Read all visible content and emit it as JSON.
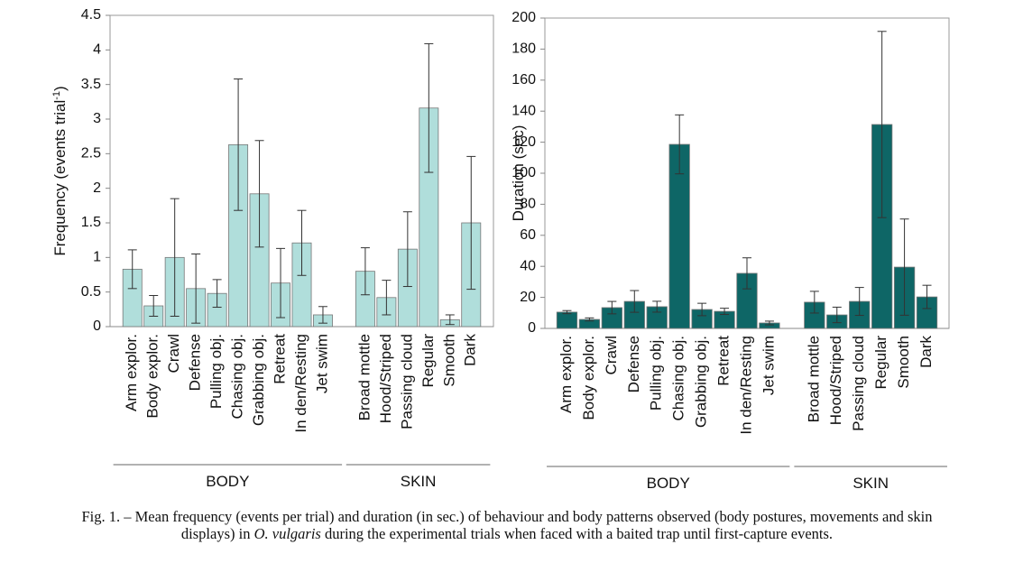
{
  "chart_data": [
    {
      "type": "bar",
      "ylabel": [
        "Frequency (events trial",
        "-1",
        ")"
      ],
      "categories": [
        "Arm explor.",
        "Body explor.",
        "Crawl",
        "Defense",
        "Pulling obj.",
        "Chasing obj.",
        "Grabbing obj.",
        "Retreat",
        "In den/Resting",
        "Jet swim",
        null,
        "Broad mottle",
        "Hood/Striped",
        "Passing cloud",
        "Regular",
        "Smooth",
        "Dark"
      ],
      "values": [
        0.83,
        0.3,
        1.0,
        0.55,
        0.48,
        2.63,
        1.92,
        0.63,
        1.21,
        0.17,
        null,
        0.8,
        0.42,
        1.12,
        3.16,
        0.1,
        1.5
      ],
      "errors": [
        0.28,
        0.15,
        0.85,
        0.5,
        0.2,
        0.95,
        0.77,
        0.5,
        0.47,
        0.12,
        null,
        0.34,
        0.25,
        0.54,
        0.93,
        0.07,
        0.96
      ],
      "color": "#b0dedb",
      "ylim": [
        0,
        4.5
      ],
      "yticks": [
        0,
        0.5,
        1,
        1.5,
        2,
        2.5,
        3,
        3.5,
        4,
        4.5
      ],
      "groups": [
        "BODY",
        "SKIN"
      ]
    },
    {
      "type": "bar",
      "ylabel": [
        "Duration (sec)"
      ],
      "categories": [
        "Arm explor.",
        "Body explor.",
        "Crawl",
        "Defense",
        "Pulling obj.",
        "Chasing obj.",
        "Grabbing obj.",
        "Retreat",
        "In den/Resting",
        "Jet swim",
        null,
        "Broad mottle",
        "Hood/Striped",
        "Passing cloud",
        "Regular",
        "Smooth",
        "Dark"
      ],
      "values": [
        10.5,
        5.8,
        13.4,
        17.4,
        14,
        118.6,
        12.2,
        11,
        35.5,
        3.5,
        null,
        16.9,
        8.7,
        17.4,
        131.4,
        39.5,
        20.3
      ],
      "errors": [
        1,
        1,
        4,
        7,
        3.5,
        19,
        4,
        2,
        10,
        1.2,
        null,
        7,
        5,
        9,
        60,
        31,
        7.5
      ],
      "color": "#0e6666",
      "ylim": [
        0,
        200
      ],
      "yticks": [
        0,
        20,
        40,
        60,
        80,
        100,
        120,
        140,
        160,
        180,
        200
      ],
      "groups": [
        "BODY",
        "SKIN"
      ]
    }
  ],
  "caption": {
    "line1": "Fig. 1. – Mean frequency (events per trial) and duration (in sec.) of behaviour and body patterns observed (body postures, movements and skin",
    "line2_start": "displays) in",
    "species": "O. vulgaris",
    "line2_end": "during the experimental trials when faced with a baited trap until first-capture events."
  }
}
